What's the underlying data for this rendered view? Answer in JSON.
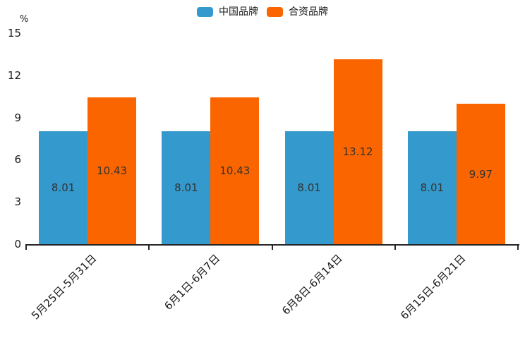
{
  "chart_data": {
    "type": "bar",
    "title": "",
    "xlabel": "",
    "ylabel": "%",
    "categories": [
      "5月25日-5月31日",
      "6月1日-6月7日",
      "6月8日-6月14日",
      "6月15日-6月21日"
    ],
    "series": [
      {
        "name": "中国品牌",
        "color": "#3499cc",
        "values": [
          8.01,
          8.01,
          8.01,
          8.01
        ]
      },
      {
        "name": "合资品牌",
        "color": "#fb6500",
        "values": [
          10.43,
          10.43,
          13.12,
          9.97
        ]
      }
    ],
    "ylim": [
      0,
      15
    ],
    "yticks": [
      0,
      3,
      6,
      9,
      12,
      15
    ],
    "grid": false,
    "legend_position": "top-center",
    "value_labels": true,
    "axis_color": "#262626",
    "value_label_color": "#333333",
    "tick_label_color": "#1a1a1a"
  }
}
